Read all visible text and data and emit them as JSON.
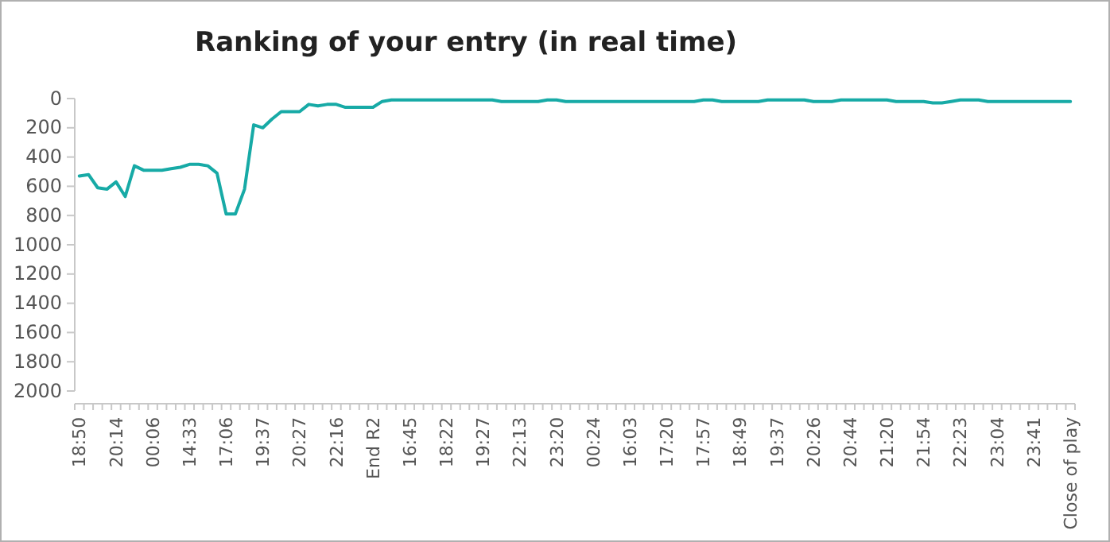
{
  "chart_data": {
    "type": "line",
    "title": "Ranking of your entry (in real time)",
    "categories": [
      "18:50",
      null,
      null,
      null,
      "20:14",
      null,
      null,
      null,
      "00:06",
      null,
      null,
      null,
      "14:33",
      null,
      null,
      null,
      "17:06",
      null,
      null,
      null,
      "19:37",
      null,
      null,
      null,
      "20:27",
      null,
      null,
      null,
      "22:16",
      null,
      null,
      null,
      "End R2",
      null,
      null,
      null,
      "16:45",
      null,
      null,
      null,
      "18:22",
      null,
      null,
      null,
      "19:27",
      null,
      null,
      null,
      "22:13",
      null,
      null,
      null,
      "23:20",
      null,
      null,
      null,
      "00:24",
      null,
      null,
      null,
      "16:03",
      null,
      null,
      null,
      "17:20",
      null,
      null,
      null,
      "17:57",
      null,
      null,
      null,
      "18:49",
      null,
      null,
      null,
      "19:37",
      null,
      null,
      null,
      "20:26",
      null,
      null,
      null,
      "20:44",
      null,
      null,
      null,
      "21:20",
      null,
      null,
      null,
      "21:54",
      null,
      null,
      null,
      "22:23",
      null,
      null,
      null,
      "23:04",
      null,
      null,
      null,
      "23:41",
      null,
      null,
      null,
      "Close of play"
    ],
    "series": [
      {
        "color": "#17aaa6",
        "values": [
          530,
          520,
          610,
          620,
          570,
          670,
          460,
          490,
          490,
          490,
          480,
          470,
          450,
          450,
          460,
          510,
          790,
          790,
          620,
          180,
          200,
          140,
          90,
          90,
          90,
          40,
          50,
          40,
          40,
          60,
          60,
          60,
          60,
          20,
          10,
          10,
          10,
          10,
          10,
          10,
          10,
          10,
          10,
          10,
          10,
          10,
          20,
          20,
          20,
          20,
          20,
          10,
          10,
          20,
          20,
          20,
          20,
          20,
          20,
          20,
          20,
          20,
          20,
          20,
          20,
          20,
          20,
          20,
          10,
          10,
          20,
          20,
          20,
          20,
          20,
          10,
          10,
          10,
          10,
          10,
          20,
          20,
          20,
          10,
          10,
          10,
          10,
          10,
          10,
          20,
          20,
          20,
          20,
          30,
          30,
          20,
          10,
          10,
          10,
          20,
          20,
          20,
          20,
          20,
          20,
          20,
          20,
          20,
          20
        ]
      }
    ],
    "ylim": [
      2000,
      0
    ],
    "yticks": [
      0,
      200,
      400,
      600,
      800,
      1000,
      1200,
      1400,
      1600,
      1800,
      2000
    ],
    "grid": false
  }
}
